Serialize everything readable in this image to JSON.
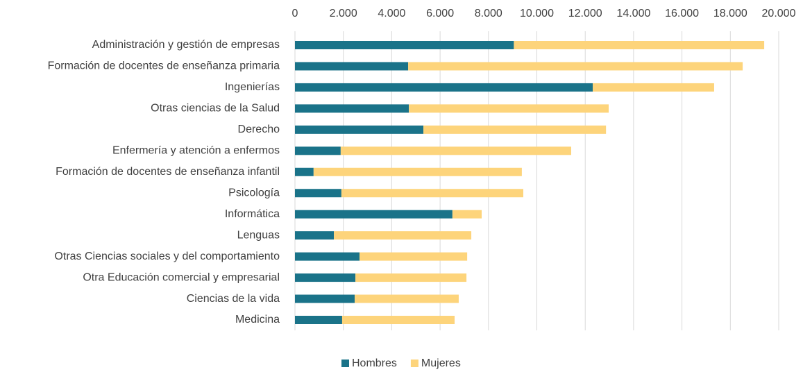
{
  "chart_data": {
    "type": "stacked-barh",
    "categories": [
      "Administración y gestión de empresas",
      "Formación de docentes de enseñanza primaria",
      "Ingenierías",
      "Otras ciencias de la Salud",
      "Derecho",
      "Enfermería y atención a enfermos",
      "Formación de docentes de enseñanza infantil",
      "Psicología",
      "Informática",
      "Lenguas",
      "Otras Ciencias sociales y del comportamiento",
      "Otra Educación comercial y empresarial",
      "Ciencias de la vida",
      "Medicina"
    ],
    "series": [
      {
        "name": "Hombres",
        "color": "#1a7389",
        "values": [
          9050,
          4680,
          12310,
          4710,
          5310,
          1890,
          770,
          1920,
          6510,
          1610,
          2670,
          2500,
          2470,
          1950
        ]
      },
      {
        "name": "Mujeres",
        "color": "#fdd47b",
        "values": [
          10350,
          13830,
          5020,
          8260,
          7550,
          9530,
          8610,
          7520,
          1210,
          5680,
          4450,
          4590,
          4300,
          4650
        ]
      }
    ],
    "xlim": [
      0,
      20000
    ],
    "xticks": [
      0,
      {
        "value": 2000,
        "label": "2.000"
      },
      {
        "value": 4000,
        "label": "4.000"
      },
      {
        "value": 6000,
        "label": "6.000"
      },
      {
        "value": 8000,
        "label": "8.000"
      },
      {
        "value": 10000,
        "label": "10.000"
      },
      {
        "value": 12000,
        "label": "12.000"
      },
      {
        "value": 14000,
        "label": "14.000"
      },
      {
        "value": 16000,
        "label": "16.000"
      },
      {
        "value": 18000,
        "label": "18.000"
      },
      {
        "value": 20000,
        "label": "20.000"
      }
    ],
    "grid": true,
    "legend": "bottom"
  }
}
